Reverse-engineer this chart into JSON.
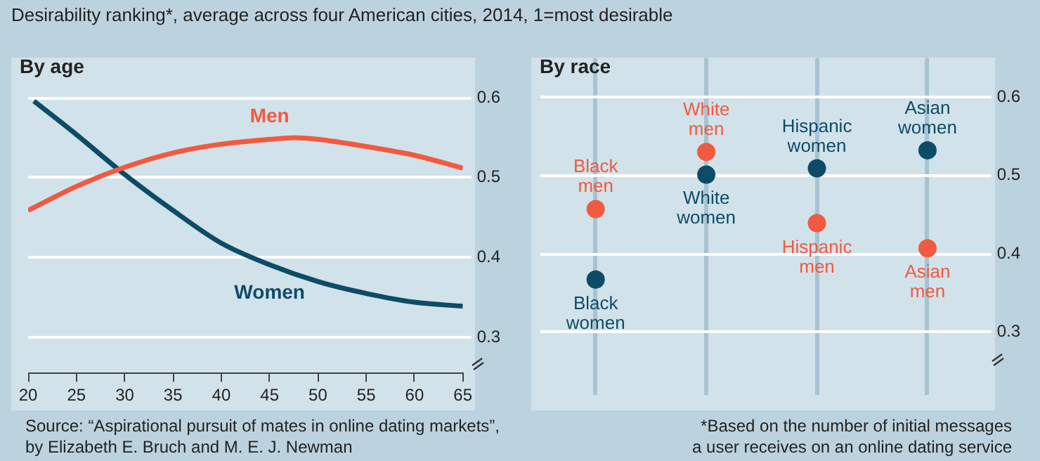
{
  "chart_data": [
    {
      "type": "line",
      "title": "Desirability ranking*, average across four American cities, 2014, 1=most desirable",
      "subtitle": "By age",
      "annotations": [
        "Source: “Aspirational pursuit of mates in online dating markets”,\nby Elizabeth E. Bruch and M. E. J. Newman"
      ],
      "series": [
        {
          "name": "Men",
          "color": "#f15a40",
          "x": [
            20,
            25,
            30,
            35,
            40,
            45,
            47.5,
            50,
            55,
            60,
            65
          ],
          "values": [
            0.459,
            0.489,
            0.513,
            0.531,
            0.542,
            0.548,
            0.55,
            0.548,
            0.539,
            0.528,
            0.512
          ]
        },
        {
          "name": "Women",
          "color": "#0d4c66",
          "x": [
            20.6,
            25,
            30,
            35,
            40,
            45,
            50,
            55,
            60,
            65
          ],
          "values": [
            0.596,
            0.554,
            0.504,
            0.459,
            0.418,
            0.391,
            0.37,
            0.355,
            0.344,
            0.339
          ]
        }
      ],
      "xlim": [
        20,
        65
      ],
      "xticks": [
        20,
        25,
        30,
        35,
        40,
        45,
        50,
        55,
        60,
        65
      ],
      "ylim": [
        0.255,
        0.65
      ],
      "yticks": [
        0.3,
        0.4,
        0.5,
        0.6
      ],
      "grid": "y",
      "marker": "none"
    },
    {
      "type": "scatter",
      "subtitle": "By race",
      "annotations": [
        "*Based on the number of initial messages\na user receives on an online dating service"
      ],
      "categories": [
        null,
        null,
        null,
        null
      ],
      "series": [
        {
          "color": "#f15a40",
          "values": [
            0.457,
            0.53,
            0.439,
            0.407
          ],
          "value_labels": [
            "Black\nmen",
            "White\nmen",
            "Hispanic\nmen",
            "Asian\nmen"
          ]
        },
        {
          "color": "#0d4c66",
          "values": [
            0.367,
            0.501,
            0.509,
            0.532
          ],
          "value_labels": [
            "Black\nwomen",
            "White\nwomen",
            "Hispanic\nwomen",
            "Asian\nwomen"
          ]
        }
      ],
      "ylim": [
        0.22,
        0.65
      ],
      "yticks": [
        0.3,
        0.4,
        0.5,
        0.6
      ],
      "grid": true,
      "tick_labels": "y",
      "marker": "circle"
    }
  ]
}
